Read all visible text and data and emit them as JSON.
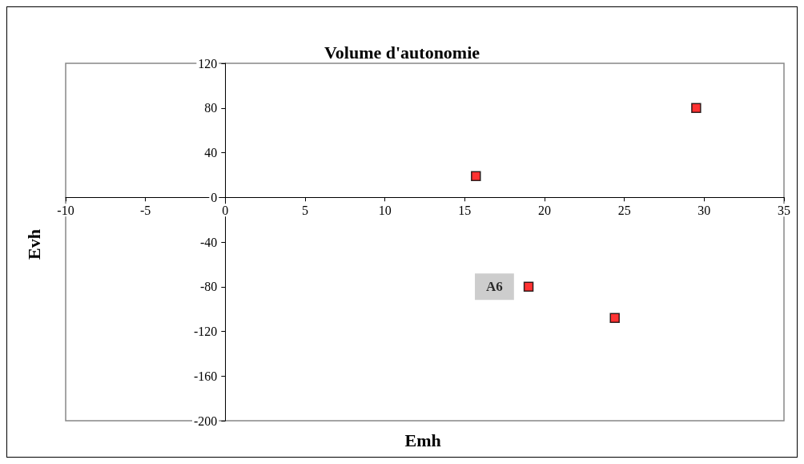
{
  "chart_data": {
    "type": "scatter",
    "title": "Volume d'autonomie",
    "xlabel": "Emh",
    "ylabel": "Evh",
    "x": [
      15.7,
      19.0,
      24.4,
      29.5
    ],
    "series": [
      {
        "color": "#ff0000",
        "values": [
          19,
          -80,
          -108,
          80
        ]
      }
    ],
    "xlim": [
      -10,
      35
    ],
    "xticks": [
      -10,
      -5,
      0,
      5,
      10,
      15,
      20,
      25,
      30,
      35
    ],
    "ylim": [
      -200,
      120
    ],
    "yticks": [
      -200,
      -160,
      -120,
      -80,
      -40,
      0,
      40,
      80,
      120
    ],
    "annotations": [
      {
        "text": "A6",
        "x": 19.0,
        "y": -80
      }
    ],
    "marker": "square",
    "grid": false
  }
}
